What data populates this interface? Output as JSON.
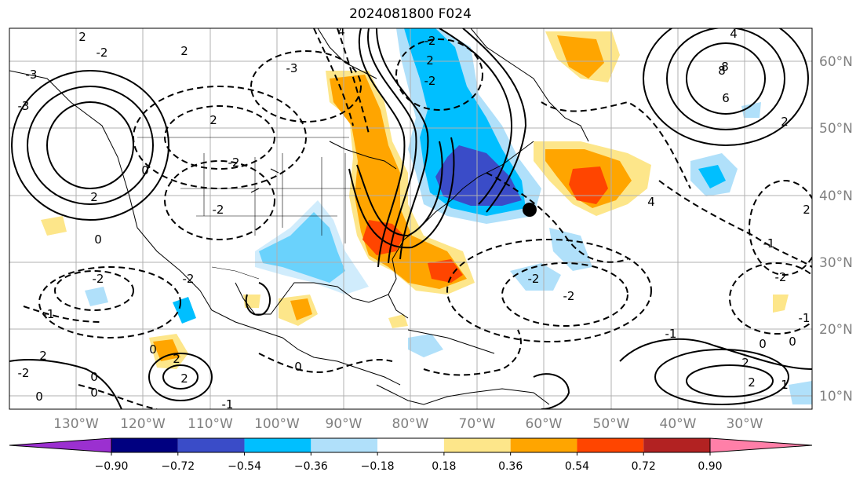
{
  "title": "2024081800 F024",
  "longitude_labels": [
    "130°W",
    "120°W",
    "110°W",
    "100°W",
    "90°W",
    "80°W",
    "70°W",
    "60°W",
    "50°W",
    "40°W",
    "30°W"
  ],
  "latitude_labels": [
    "60°N",
    "50°N",
    "40°N",
    "30°N",
    "20°N",
    "10°N"
  ],
  "colorbar": {
    "ticks": [
      "−0.90",
      "−0.72",
      "−0.54",
      "−0.36",
      "−0.18",
      "0.18",
      "0.36",
      "0.54",
      "0.72",
      "0.90"
    ],
    "colors": [
      "#9b30d0",
      "#000080",
      "#3a4cc8",
      "#00bfff",
      "#b0e0fa",
      "#ffffff",
      "#fde68a",
      "#ffa500",
      "#ff4500",
      "#b22222",
      "#ff7fa8"
    ],
    "under_color": "#9b30d0",
    "over_color": "#ff7fa8"
  },
  "contour_labels": [
    "2",
    "2",
    "-2",
    "-3",
    "-3",
    "2",
    "-3",
    "-2",
    "4",
    "-2",
    "2",
    "-2",
    "0",
    "-2",
    "8",
    "4",
    "2",
    "2",
    "0",
    "0",
    "-2",
    "4",
    "8",
    "6",
    "2",
    "-2",
    "-1",
    "0",
    "-2",
    "-1",
    "-2",
    "0",
    "-1",
    "2",
    "2",
    "1",
    "0",
    "-2",
    "-1",
    "0",
    "-1",
    "-2",
    "2",
    "2",
    "0",
    "2",
    "0"
  ],
  "marker": {
    "name": "black-dot",
    "color": "#000000"
  }
}
